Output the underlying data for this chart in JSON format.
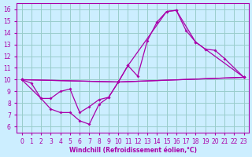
{
  "bg_color": "#cceeff",
  "line_color": "#aa00aa",
  "grid_color": "#99cccc",
  "xlabel": "Windchill (Refroidissement éolien,°C)",
  "xlim": [
    -0.5,
    23.5
  ],
  "ylim": [
    5.5,
    16.5
  ],
  "xticks": [
    0,
    1,
    2,
    3,
    4,
    5,
    6,
    7,
    8,
    9,
    10,
    11,
    12,
    13,
    14,
    15,
    16,
    17,
    18,
    19,
    20,
    21,
    22,
    23
  ],
  "yticks": [
    6,
    7,
    8,
    9,
    10,
    11,
    12,
    13,
    14,
    15,
    16
  ],
  "lines": [
    {
      "x": [
        0,
        1,
        2,
        3,
        4,
        5,
        6,
        7,
        8,
        9,
        10,
        11,
        12,
        13,
        14,
        15,
        16,
        17,
        18,
        19,
        20,
        21,
        23
      ],
      "y": [
        10,
        9.7,
        8.4,
        7.5,
        7.2,
        7.2,
        6.5,
        6.2,
        7.9,
        8.5,
        9.8,
        11.2,
        10.3,
        13.3,
        14.9,
        15.8,
        15.9,
        14.2,
        13.2,
        12.6,
        12.5,
        11.8,
        10.2
      ]
    },
    {
      "x": [
        0,
        10,
        11,
        15,
        16,
        18,
        19,
        23
      ],
      "y": [
        10,
        9.8,
        11.2,
        15.8,
        15.9,
        13.2,
        12.6,
        10.2
      ]
    },
    {
      "x": [
        0,
        10,
        23
      ],
      "y": [
        10,
        9.8,
        10.2
      ]
    },
    {
      "x": [
        0,
        2,
        3,
        4,
        5,
        6,
        7,
        8,
        9,
        10,
        23
      ],
      "y": [
        10,
        8.4,
        8.4,
        9.0,
        9.2,
        7.2,
        7.7,
        8.3,
        8.5,
        9.8,
        10.2
      ]
    }
  ]
}
